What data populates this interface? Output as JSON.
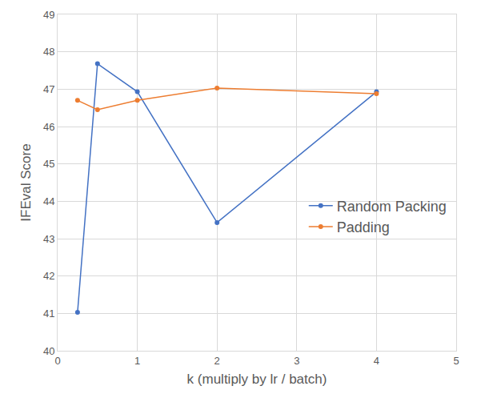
{
  "chart_data": {
    "type": "line",
    "x_label": "k (multiply by lr / batch)",
    "y_label": "IFEval Score",
    "x": [
      0.25,
      0.5,
      1,
      2,
      4
    ],
    "series": [
      {
        "name": "Random Packing",
        "color": "#4472c4",
        "values": [
          41.03,
          47.68,
          46.93,
          43.43,
          46.93
        ]
      },
      {
        "name": "Padding",
        "color": "#ed7d31",
        "values": [
          46.7,
          46.45,
          46.7,
          47.03,
          46.88
        ]
      }
    ],
    "xlim": [
      0,
      5
    ],
    "xticks": [
      0,
      1,
      2,
      3,
      4,
      5
    ],
    "ylim": [
      40,
      49
    ],
    "yticks": [
      40,
      41,
      42,
      43,
      44,
      45,
      46,
      47,
      48,
      49
    ],
    "grid": true,
    "legend": "right",
    "marker": "circle"
  }
}
